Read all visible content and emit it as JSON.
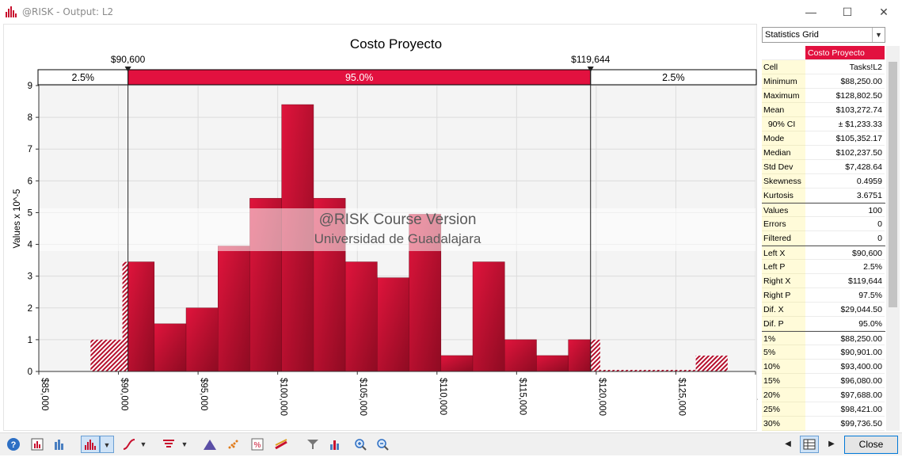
{
  "window": {
    "title": "@RISK - Output: L2",
    "minimize_glyph": "—",
    "maximize_glyph": "☐",
    "close_glyph": "✕"
  },
  "chart_data": {
    "type": "bar",
    "title": "Costo Proyecto",
    "ylabel": "Values x 10^-5",
    "xlabel": "",
    "ylim": [
      0,
      9
    ],
    "xlim": [
      85000,
      130000
    ],
    "bin_width": 2000,
    "y_ticks": [
      "0",
      "1",
      "2",
      "3",
      "4",
      "5",
      "6",
      "7",
      "8",
      "9"
    ],
    "x_ticks": [
      "$85,000",
      "$90,000",
      "$95,000",
      "$100,000",
      "$105,000",
      "$110,000",
      "$115,000",
      "$120,000",
      "$125,000",
      "$130,000"
    ],
    "x_tick_values": [
      85000,
      90000,
      95000,
      100000,
      105000,
      110000,
      115000,
      120000,
      125000,
      130000
    ],
    "bins": [
      {
        "start": 88250,
        "value": 1.0
      },
      {
        "start": 90250,
        "value": 3.45
      },
      {
        "start": 92250,
        "value": 1.5
      },
      {
        "start": 94250,
        "value": 2.0
      },
      {
        "start": 96250,
        "value": 3.95
      },
      {
        "start": 98250,
        "value": 5.45
      },
      {
        "start": 100250,
        "value": 8.4
      },
      {
        "start": 102250,
        "value": 5.45
      },
      {
        "start": 104250,
        "value": 3.45
      },
      {
        "start": 106250,
        "value": 2.95
      },
      {
        "start": 108250,
        "value": 4.95
      },
      {
        "start": 110250,
        "value": 0.5
      },
      {
        "start": 112250,
        "value": 3.45
      },
      {
        "start": 114250,
        "value": 1.0
      },
      {
        "start": 116250,
        "value": 0.5
      },
      {
        "start": 118250,
        "value": 1.0
      },
      {
        "start": 120250,
        "value": 0.05
      },
      {
        "start": 122250,
        "value": 0.05
      },
      {
        "start": 124250,
        "value": 0.05
      },
      {
        "start": 126250,
        "value": 0.5
      }
    ],
    "left_x": 90600,
    "right_x": 119644,
    "left_x_label": "$90,600",
    "right_x_label": "$119,644",
    "left_pct": "2.5%",
    "mid_pct": "95.0%",
    "right_pct": "2.5%",
    "watermark_line1": "@RISK Course Version",
    "watermark_line2": "Universidad de Guadalajara",
    "colors": {
      "bar": "#c8102e",
      "bar_dark": "#8e0b22",
      "band": "#e2113f"
    }
  },
  "stats": {
    "selector_label": "Statistics Grid",
    "header": "Costo Proyecto",
    "rows": [
      {
        "label": "Cell",
        "value": "Tasks!L2"
      },
      {
        "label": "Minimum",
        "value": "$88,250.00"
      },
      {
        "label": "Maximum",
        "value": "$128,802.50"
      },
      {
        "label": "Mean",
        "value": "$103,272.74"
      },
      {
        "label": "  90% CI",
        "value": "± $1,233.33"
      },
      {
        "label": "Mode",
        "value": "$105,352.17"
      },
      {
        "label": "Median",
        "value": "$102,237.50"
      },
      {
        "label": "Std Dev",
        "value": "$7,428.64"
      },
      {
        "label": "Skewness",
        "value": "0.4959"
      },
      {
        "label": "Kurtosis",
        "value": "3.6751"
      },
      {
        "label": "Values",
        "value": "100",
        "sep": true
      },
      {
        "label": "Errors",
        "value": "0"
      },
      {
        "label": "Filtered",
        "value": "0"
      },
      {
        "label": "Left X",
        "value": "$90,600",
        "sep": true
      },
      {
        "label": "Left P",
        "value": "2.5%"
      },
      {
        "label": "Right X",
        "value": "$119,644"
      },
      {
        "label": "Right P",
        "value": "97.5%"
      },
      {
        "label": "Dif. X",
        "value": "$29,044.50"
      },
      {
        "label": "Dif. P",
        "value": "95.0%"
      },
      {
        "label": "1%",
        "value": "$88,250.00",
        "sep": true
      },
      {
        "label": "5%",
        "value": "$90,901.00"
      },
      {
        "label": "10%",
        "value": "$93,400.00"
      },
      {
        "label": "15%",
        "value": "$96,080.00"
      },
      {
        "label": "20%",
        "value": "$97,688.00"
      },
      {
        "label": "25%",
        "value": "$98,421.00"
      },
      {
        "label": "30%",
        "value": "$99,736.50"
      }
    ]
  },
  "toolbar": {
    "close_label": "Close",
    "prev_glyph": "◀",
    "next_glyph": "▶"
  }
}
